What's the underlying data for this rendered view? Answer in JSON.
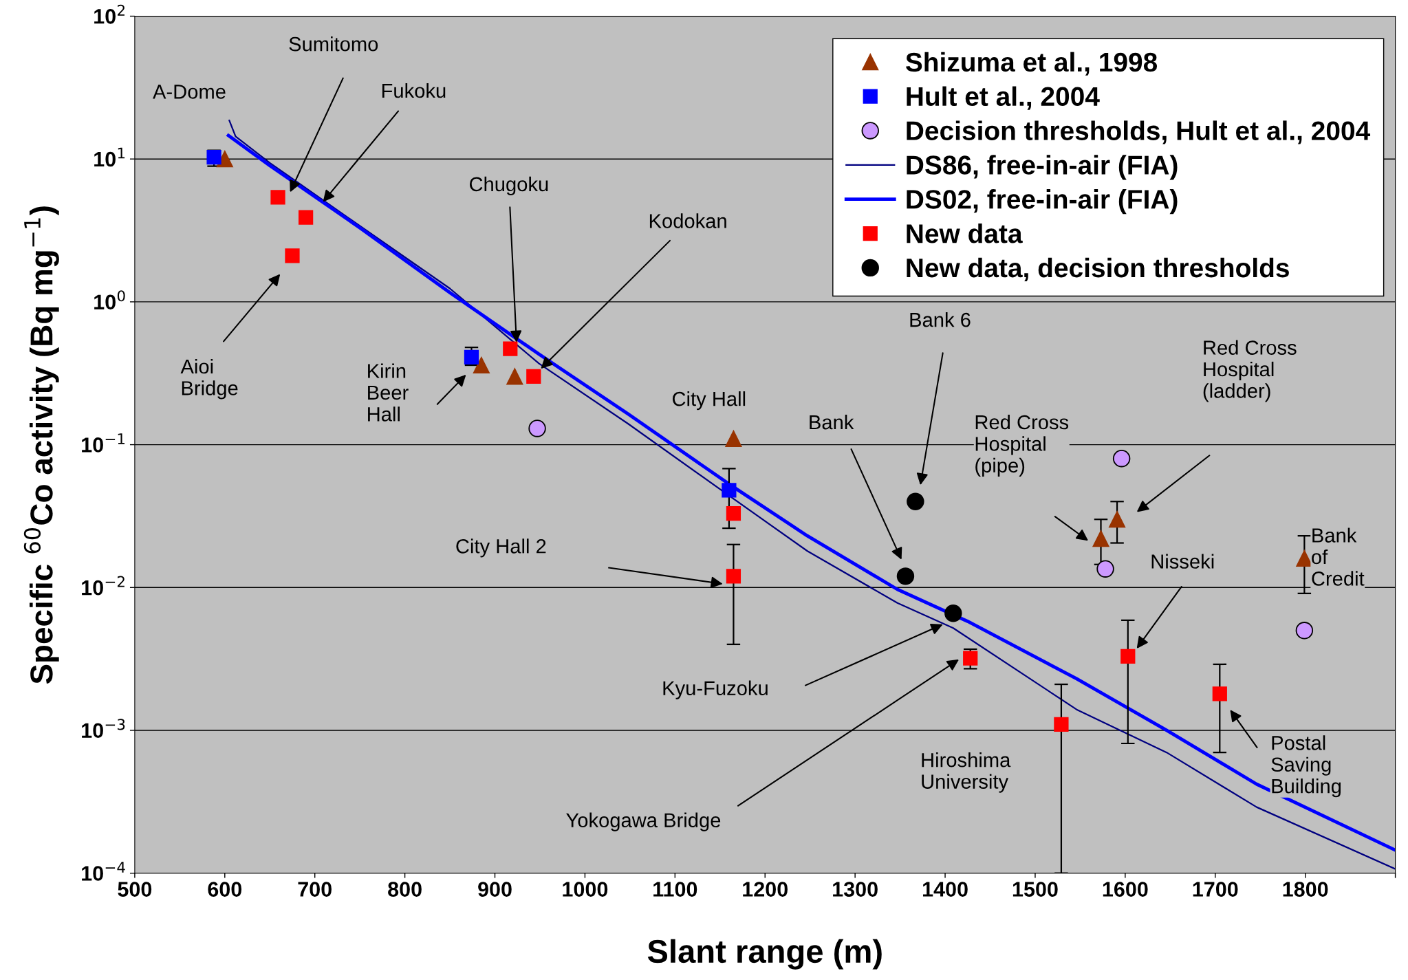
{
  "chart_data": {
    "type": "scatter",
    "xlabel": "Slant range (m)",
    "ylabel": "Specific $^{60}$Co activity (Bq mg$^{−1}$)",
    "xlim": [
      500,
      1900
    ],
    "xticks": [
      500,
      600,
      700,
      800,
      900,
      1000,
      1100,
      1200,
      1300,
      1400,
      1500,
      1600,
      1700,
      1800,
      {
        "value": 1900,
        "label": null
      }
    ],
    "ylim": [
      0.0001,
      100
    ],
    "log": true,
    "yticks": [
      {
        "value": 0.0001,
        "label": "10$^{−4}$"
      },
      {
        "value": 0.001,
        "label": "10$^{−3}$"
      },
      {
        "value": 0.01,
        "label": "10$^{−2}$"
      },
      {
        "value": 0.1,
        "label": "10$^{−1}$"
      },
      {
        "value": 1,
        "label": "10$^{0}$"
      },
      {
        "value": 10,
        "label": "10$^{1}$"
      },
      {
        "value": 100,
        "label": "10$^{2}$"
      }
    ],
    "grid": "y",
    "legend": "top right",
    "series": [
      {
        "name": "Shizuma et al., 1998",
        "marker": "triangle",
        "color": "#993300",
        "x": [
          600,
          885,
          922,
          1165,
          1573,
          1591,
          1799
        ],
        "values": [
          10,
          0.36,
          0.3,
          0.11,
          0.022,
          0.03,
          0.016
        ],
        "errors": [
          null,
          null,
          null,
          null,
          [
            0.0145,
            0.03
          ],
          [
            0.0205,
            0.04
          ],
          [
            0.0091,
            0.023
          ]
        ]
      },
      {
        "name": "Hult et al., 2004",
        "marker": "square",
        "color": "#0000ff",
        "x": [
          588,
          874,
          1160
        ],
        "values": [
          10.3,
          0.41,
          0.048
        ],
        "errors": [
          [
            8.9,
            11.5
          ],
          [
            0.36,
            0.48
          ],
          [
            0.026,
            0.068
          ]
        ]
      },
      {
        "name": "Decision thresholds, Hult et al., 2004",
        "marker": "circle",
        "color": "#cc99ff",
        "x": [
          947,
          1578,
          1596,
          1799
        ],
        "values": [
          0.13,
          0.0135,
          0.08,
          0.005
        ]
      },
      {
        "name": "DS86, free-in-air (FIA)",
        "type": "line",
        "marker": "none",
        "color": "#000080",
        "x": [
          605,
          612,
          650,
          750,
          850,
          949,
          1048,
          1160,
          1247,
          1347,
          1409,
          1546,
          1646,
          1746,
          1900
        ],
        "values": [
          18.6,
          14.4,
          9.4,
          3.4,
          1.24,
          0.37,
          0.14,
          0.044,
          0.018,
          0.0078,
          0.0052,
          0.0014,
          0.0007,
          0.00029,
          0.000107
        ]
      },
      {
        "name": "DS02, free-in-air (FIA)",
        "type": "line",
        "marker": "none",
        "color": "#0000ff",
        "x": [
          604,
          650,
          750,
          850,
          949,
          1048,
          1160,
          1247,
          1347,
          1425,
          1546,
          1646,
          1746,
          1900
        ],
        "values": [
          14.6,
          9.0,
          3.3,
          1.16,
          0.43,
          0.164,
          0.053,
          0.023,
          0.0097,
          0.0058,
          0.0023,
          0.001,
          0.00042,
          0.000145
        ]
      },
      {
        "name": "New data",
        "marker": "square",
        "color": "#ff0000",
        "x": [
          659,
          675,
          690,
          917,
          943,
          1165,
          1165,
          1428,
          1529,
          1603,
          1705
        ],
        "values": [
          5.4,
          2.1,
          3.9,
          0.47,
          0.3,
          0.033,
          0.012,
          0.0032,
          0.0011,
          0.0033,
          0.0018
        ],
        "errors": [
          null,
          null,
          null,
          null,
          null,
          null,
          [
            0.004,
            0.02
          ],
          [
            0.0027,
            0.0037
          ],
          [
            0.0001,
            0.0021
          ],
          [
            0.00081,
            0.0059
          ],
          [
            0.0007,
            0.0029
          ]
        ]
      },
      {
        "name": "New data, decision thresholds",
        "marker": "circle",
        "color": "#000000",
        "x": [
          1356,
          1367,
          1409
        ],
        "values": [
          0.012,
          0.04,
          0.0066
        ]
      }
    ],
    "annotations": [
      "A-Dome",
      "Sumitomo",
      {
        "text": "Fukoku",
        "x": 709,
        "y": 5.0
      },
      {
        "text": "Chugoku",
        "x": 924,
        "y": 0.52
      },
      {
        "text": "Kodokan",
        "x": 951,
        "y": 0.34
      },
      "Aioi\nBridge",
      "Kirin\nBeer\nHall",
      "City Hall",
      "Bank 6",
      "Bank",
      "Red Cross\nHospital\n(pipe)",
      "Red Cross\nHospital\n(ladder)",
      "City Hall 2",
      "Nisseki",
      "Bank\nof\nCredit",
      "Kyu-Fuzoku",
      "Yokogawa Bridge",
      "Hiroshima\nUniversity",
      "Postal\nSaving\nBuilding"
    ]
  }
}
